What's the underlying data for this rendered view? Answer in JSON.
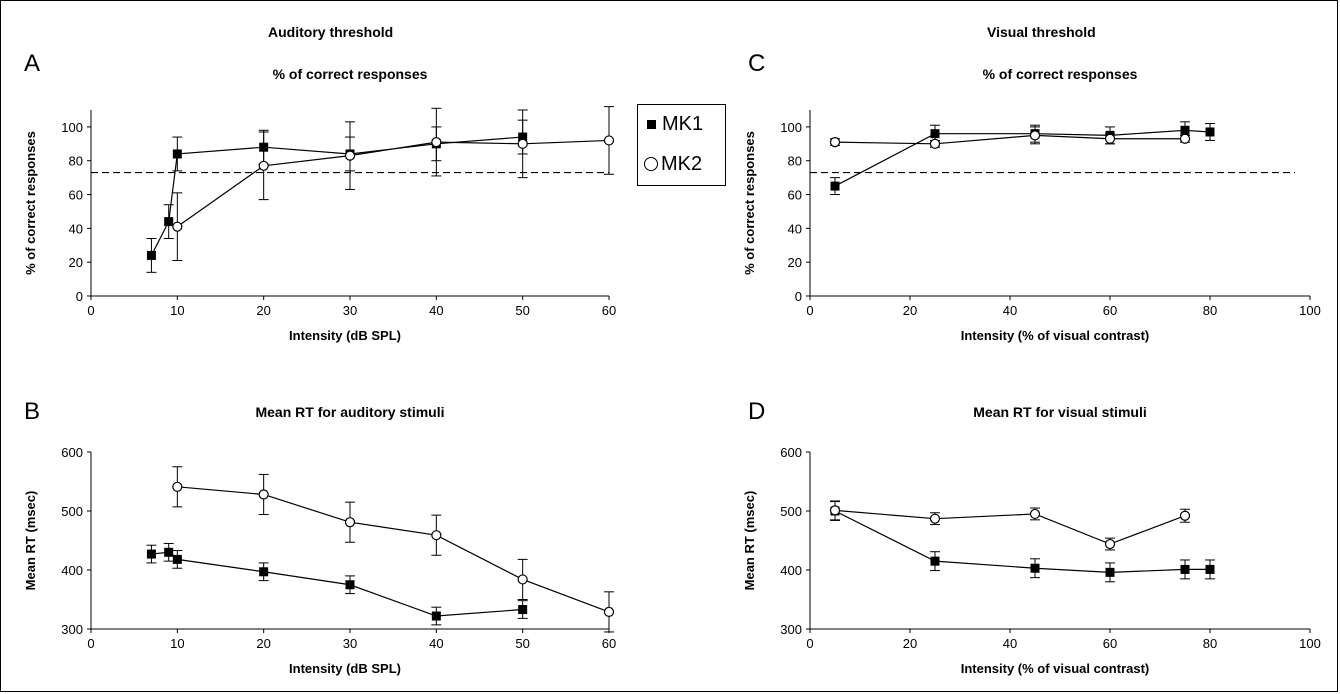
{
  "sections": {
    "auditory": "Auditory threshold",
    "visual": "Visual threshold"
  },
  "legend": {
    "mk1": "MK1",
    "mk2": "MK2"
  },
  "chart_data": [
    {
      "panel": "A",
      "type": "line",
      "title": "% of correct responses",
      "xlabel": "Intensity (dB SPL)",
      "ylabel": "% of correct responses",
      "xlim": [
        0,
        60
      ],
      "ylim": [
        0,
        110
      ],
      "xticks": [
        0,
        10,
        20,
        30,
        40,
        50,
        60
      ],
      "yticks": [
        0,
        20,
        40,
        60,
        80,
        100
      ],
      "reference_line": 73,
      "series": [
        {
          "name": "MK1",
          "marker": "square",
          "x": [
            7,
            9,
            10,
            20,
            30,
            40,
            50
          ],
          "y": [
            24,
            44,
            84,
            88,
            84,
            90,
            94
          ],
          "err": [
            10,
            10,
            10,
            10,
            10,
            10,
            10
          ]
        },
        {
          "name": "MK2",
          "marker": "circle",
          "x": [
            10,
            20,
            30,
            40,
            50,
            60
          ],
          "y": [
            41,
            77,
            83,
            91,
            90,
            92
          ],
          "err": [
            20,
            20,
            20,
            20,
            20,
            20
          ]
        }
      ]
    },
    {
      "panel": "B",
      "type": "line",
      "title": "Mean RT for auditory stimuli",
      "xlabel": "Intensity (dB SPL)",
      "ylabel": "Mean RT (msec)",
      "xlim": [
        0,
        60
      ],
      "ylim": [
        300,
        600
      ],
      "xticks": [
        0,
        10,
        20,
        30,
        40,
        50,
        60
      ],
      "yticks": [
        300,
        400,
        500,
        600
      ],
      "series": [
        {
          "name": "MK1",
          "marker": "square",
          "x": [
            7,
            9,
            10,
            20,
            30,
            40,
            50
          ],
          "y": [
            427,
            430,
            418,
            397,
            375,
            322,
            333
          ],
          "err": [
            15,
            15,
            15,
            15,
            15,
            15,
            15
          ]
        },
        {
          "name": "MK2",
          "marker": "circle",
          "x": [
            10,
            20,
            30,
            40,
            50,
            60
          ],
          "y": [
            541,
            528,
            481,
            459,
            384,
            329
          ],
          "err": [
            34,
            34,
            34,
            34,
            34,
            34
          ]
        }
      ]
    },
    {
      "panel": "C",
      "type": "line",
      "title": "% of correct responses",
      "xlabel": "Intensity (% of visual contrast)",
      "ylabel": "% of correct responses",
      "xlim": [
        0,
        100
      ],
      "ylim": [
        0,
        110
      ],
      "xticks": [
        0,
        20,
        40,
        60,
        80,
        100
      ],
      "yticks": [
        0,
        20,
        40,
        60,
        80,
        100
      ],
      "reference_line": 73,
      "series": [
        {
          "name": "MK1",
          "marker": "square",
          "x": [
            5,
            25,
            45,
            60,
            75,
            80
          ],
          "y": [
            65,
            96,
            96,
            95,
            98,
            97
          ],
          "err": [
            5,
            5,
            5,
            5,
            5,
            5
          ]
        },
        {
          "name": "MK2",
          "marker": "circle",
          "x": [
            5,
            25,
            45,
            60,
            75
          ],
          "y": [
            91,
            90,
            95,
            93,
            93
          ],
          "err": [
            2,
            2,
            5,
            3,
            2
          ]
        }
      ]
    },
    {
      "panel": "D",
      "type": "line",
      "title": "Mean RT for visual stimuli",
      "xlabel": "Intensity (% of visual contrast)",
      "ylabel": "Mean RT (msec)",
      "xlim": [
        0,
        100
      ],
      "ylim": [
        300,
        600
      ],
      "xticks": [
        0,
        20,
        40,
        60,
        80,
        100
      ],
      "yticks": [
        300,
        400,
        500,
        600
      ],
      "series": [
        {
          "name": "MK1",
          "marker": "square",
          "x": [
            5,
            25,
            45,
            60,
            75,
            80
          ],
          "y": [
            500,
            415,
            403,
            396,
            401,
            401
          ],
          "err": [
            16,
            16,
            16,
            16,
            16,
            16
          ]
        },
        {
          "name": "MK2",
          "marker": "circle",
          "x": [
            5,
            25,
            45,
            60,
            75
          ],
          "y": [
            501,
            487,
            495,
            444,
            492
          ],
          "err": [
            16,
            10,
            10,
            10,
            11
          ]
        }
      ]
    }
  ]
}
